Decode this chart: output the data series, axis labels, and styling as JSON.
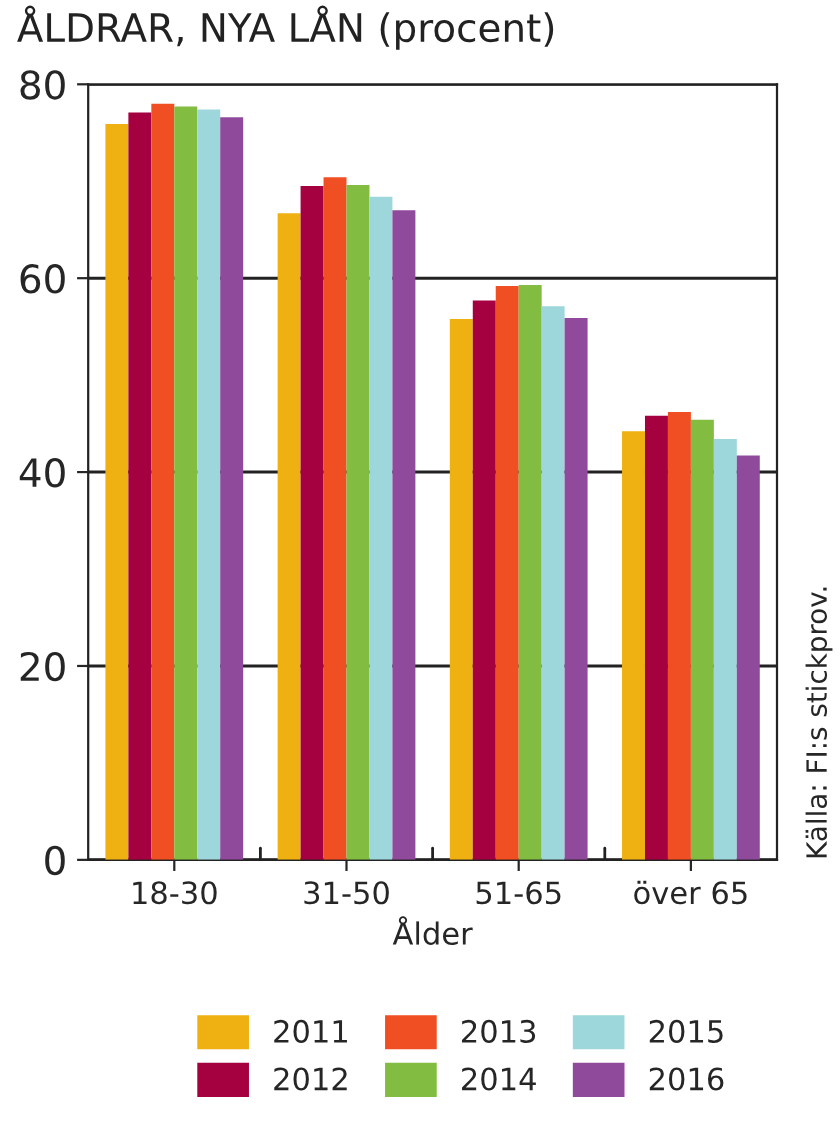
{
  "chart_data": {
    "type": "bar",
    "title": "ÅLDRAR, NYA LÅN (procent)",
    "xlabel": "Ålder",
    "categories": [
      "18-30",
      "31-50",
      "51-65",
      "över 65"
    ],
    "series": [
      {
        "name": "2011",
        "color": "#eeb111",
        "values": [
          75.9,
          66.7,
          55.8,
          44.2
        ]
      },
      {
        "name": "2012",
        "color": "#a50040",
        "values": [
          77.1,
          69.5,
          57.7,
          45.8
        ]
      },
      {
        "name": "2013",
        "color": "#f04e23",
        "values": [
          78.0,
          70.4,
          59.2,
          46.2
        ]
      },
      {
        "name": "2014",
        "color": "#82bc41",
        "values": [
          77.7,
          69.6,
          59.3,
          45.4
        ]
      },
      {
        "name": "2015",
        "color": "#9dd7dc",
        "values": [
          77.4,
          68.4,
          57.1,
          43.4
        ]
      },
      {
        "name": "2016",
        "color": "#8f4a9c",
        "values": [
          76.6,
          67.0,
          55.9,
          41.7
        ]
      }
    ],
    "ylim": [
      0,
      80
    ],
    "yticks": [
      0,
      20,
      40,
      60,
      80
    ],
    "grid": "y",
    "legend": "bottom",
    "annotations": [
      "Källa: FI:s stickprov."
    ]
  }
}
